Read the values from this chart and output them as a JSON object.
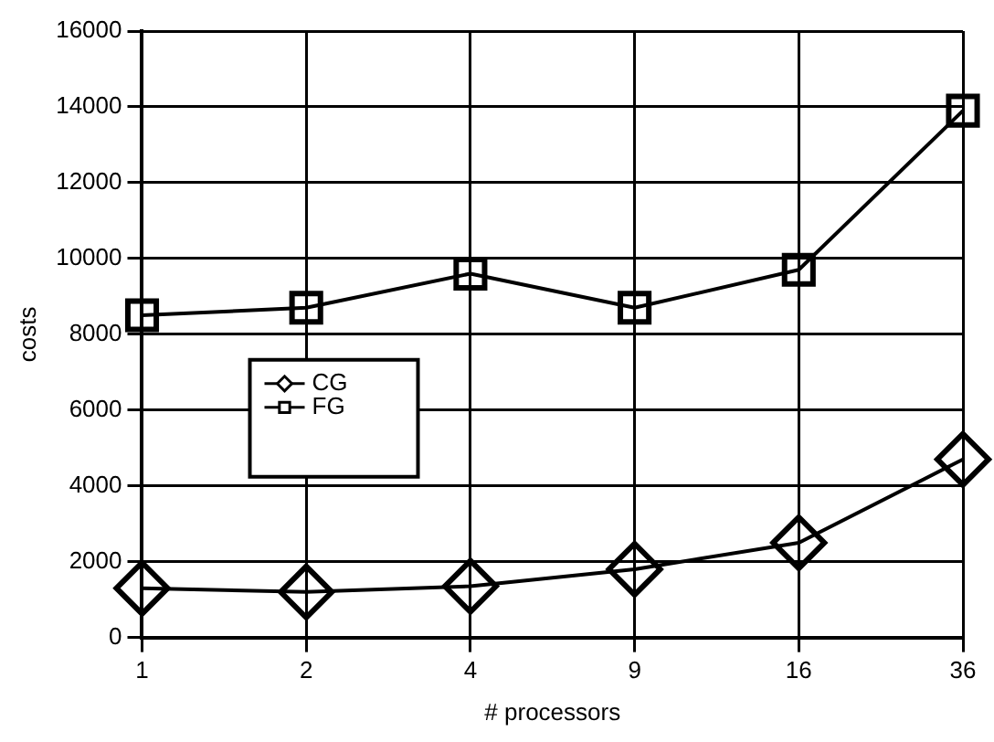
{
  "chart_data": {
    "type": "line",
    "xlabel": "# processors",
    "ylabel": "costs",
    "categories": [
      "1",
      "2",
      "4",
      "9",
      "16",
      "36"
    ],
    "series": [
      {
        "name": "CG",
        "color": "#000000",
        "marker": "diamond",
        "values": [
          1300,
          1200,
          1350,
          1800,
          2500,
          4700
        ]
      },
      {
        "name": "FG",
        "color": "#000000",
        "marker": "square",
        "values": [
          8500,
          8700,
          9600,
          8700,
          9700,
          13900
        ]
      }
    ],
    "ylim": [
      0,
      16000
    ],
    "yticks": [
      0,
      2000,
      4000,
      6000,
      8000,
      10000,
      12000,
      14000,
      16000
    ],
    "grid": true,
    "legend": "center left",
    "line_style": "solid"
  }
}
